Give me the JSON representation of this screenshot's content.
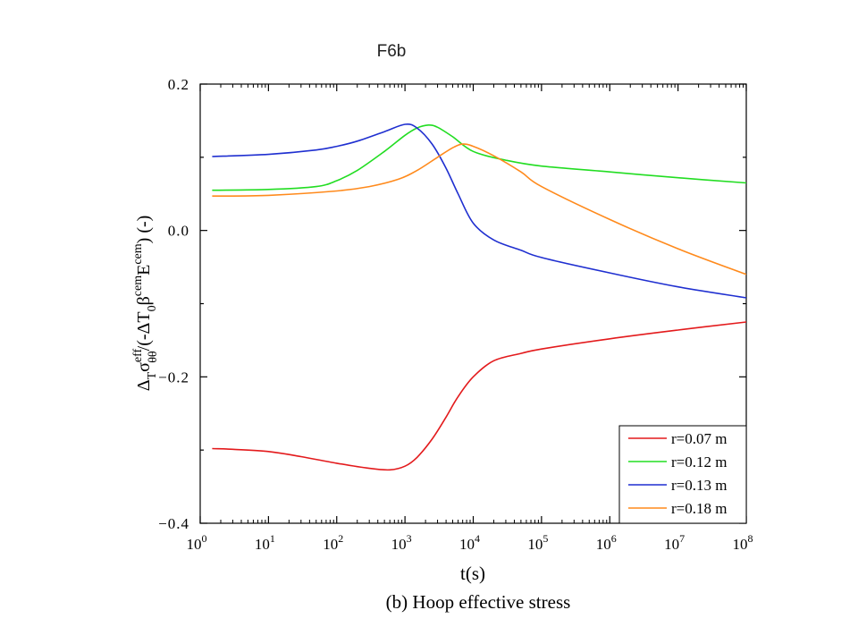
{
  "page_label": "F6b",
  "caption": "(b) Hoop effective stress",
  "chart_data": {
    "type": "line",
    "title": "",
    "xlabel": "t(s)",
    "ylabel": "ΔTσθθeff/(-ΔT0βcemEcem) (-)",
    "x_scale": "log",
    "xlim": [
      1,
      100000000
    ],
    "ylim": [
      -0.4,
      0.2
    ],
    "x_ticks": [
      {
        "value": 1,
        "base": "10",
        "exp": "0"
      },
      {
        "value": 10,
        "base": "10",
        "exp": "1"
      },
      {
        "value": 100,
        "base": "10",
        "exp": "2"
      },
      {
        "value": 1000,
        "base": "10",
        "exp": "3"
      },
      {
        "value": 10000,
        "base": "10",
        "exp": "4"
      },
      {
        "value": 100000,
        "base": "10",
        "exp": "5"
      },
      {
        "value": 1000000,
        "base": "10",
        "exp": "6"
      },
      {
        "value": 10000000,
        "base": "10",
        "exp": "7"
      },
      {
        "value": 100000000,
        "base": "10",
        "exp": "8"
      }
    ],
    "y_ticks": [
      {
        "value": -0.4,
        "label": "−0.4"
      },
      {
        "value": -0.2,
        "label": "−0.2"
      },
      {
        "value": 0.0,
        "label": "0.0"
      },
      {
        "value": 0.2,
        "label": "0.2"
      }
    ],
    "grid": false,
    "legend_position": "bottom-right",
    "series": [
      {
        "name": "r=0.07 m",
        "color": "#e31a1c",
        "x": [
          1.5,
          3,
          10,
          30,
          100,
          300,
          600,
          1000,
          1500,
          2500,
          4000,
          6000,
          10000,
          20000,
          50000,
          100000,
          1000000,
          10000000,
          100000000
        ],
        "y": [
          -0.298,
          -0.299,
          -0.302,
          -0.309,
          -0.318,
          -0.325,
          -0.327,
          -0.322,
          -0.31,
          -0.285,
          -0.255,
          -0.227,
          -0.2,
          -0.178,
          -0.168,
          -0.162,
          -0.148,
          -0.136,
          -0.125
        ]
      },
      {
        "name": "r=0.12 m",
        "color": "#22dd22",
        "x": [
          1.5,
          10,
          50,
          100,
          200,
          500,
          1000,
          1500,
          2200,
          3000,
          5000,
          10000,
          30000,
          100000,
          1000000,
          10000000,
          100000000
        ],
        "y": [
          0.055,
          0.056,
          0.06,
          0.068,
          0.082,
          0.108,
          0.13,
          0.14,
          0.144,
          0.141,
          0.128,
          0.108,
          0.096,
          0.088,
          0.08,
          0.072,
          0.065
        ]
      },
      {
        "name": "r=0.13 m",
        "color": "#1f2fd0",
        "x": [
          1.5,
          10,
          50,
          100,
          200,
          500,
          1000,
          1500,
          2500,
          4000,
          6000,
          10000,
          20000,
          50000,
          100000,
          1000000,
          10000000,
          100000000
        ],
        "y": [
          0.101,
          0.104,
          0.11,
          0.115,
          0.122,
          0.135,
          0.145,
          0.14,
          0.118,
          0.085,
          0.05,
          0.01,
          -0.013,
          -0.027,
          -0.037,
          -0.058,
          -0.077,
          -0.092
        ]
      },
      {
        "name": "r=0.18 m",
        "color": "#ff8a1c",
        "x": [
          1.5,
          10,
          100,
          300,
          800,
          1500,
          3000,
          5000,
          7000,
          10000,
          20000,
          50000,
          100000,
          1000000,
          10000000,
          100000000
        ],
        "y": [
          0.047,
          0.048,
          0.054,
          0.06,
          0.07,
          0.082,
          0.1,
          0.113,
          0.118,
          0.115,
          0.102,
          0.08,
          0.06,
          0.015,
          -0.025,
          -0.06
        ]
      }
    ]
  }
}
